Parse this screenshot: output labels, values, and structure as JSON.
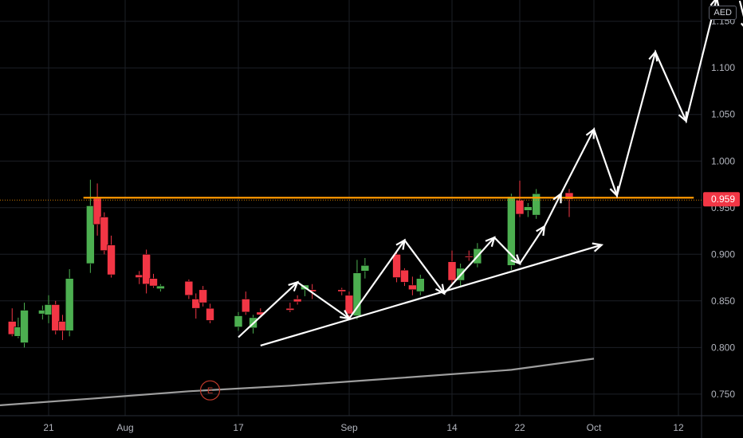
{
  "currency": "AED",
  "colors": {
    "background": "#000000",
    "grid": "#1c1f26",
    "up": "#4caf50",
    "down": "#f23645",
    "resistance": "#ff9800",
    "annotation": "#ffffff",
    "moving_average": "#9e9e9e",
    "price_tag": "#f23645",
    "earnings": "#c0392b"
  },
  "chart_data": {
    "type": "candlestick",
    "x_axis": {
      "ticks": [
        "21",
        "Aug",
        "17",
        "Sep",
        "14",
        "22",
        "Oct",
        "12"
      ]
    },
    "y_axis": {
      "range": [
        0.735,
        1.16
      ],
      "ticks": [
        "1.150",
        "1.100",
        "1.050",
        "1.000",
        "0.950",
        "0.900",
        "0.850",
        "0.800",
        "0.750"
      ]
    },
    "last_price": "0.959",
    "candles": [
      {
        "d": "Jul 15",
        "o": 0.828,
        "h": 0.842,
        "l": 0.812,
        "c": 0.814
      },
      {
        "d": "Jul 16",
        "o": 0.812,
        "h": 0.832,
        "l": 0.81,
        "c": 0.822
      },
      {
        "d": "Jul 17",
        "o": 0.805,
        "h": 0.848,
        "l": 0.8,
        "c": 0.84
      },
      {
        "d": "Jul 20",
        "o": 0.836,
        "h": 0.845,
        "l": 0.83,
        "c": 0.84
      },
      {
        "d": "Jul 21",
        "o": 0.835,
        "h": 0.856,
        "l": 0.826,
        "c": 0.846
      },
      {
        "d": "Jul 22",
        "o": 0.846,
        "h": 0.85,
        "l": 0.814,
        "c": 0.818
      },
      {
        "d": "Jul 23",
        "o": 0.828,
        "h": 0.835,
        "l": 0.808,
        "c": 0.818
      },
      {
        "d": "Jul 24",
        "o": 0.818,
        "h": 0.884,
        "l": 0.812,
        "c": 0.874
      },
      {
        "d": "Jul 27",
        "o": 0.89,
        "h": 0.98,
        "l": 0.88,
        "c": 0.952
      },
      {
        "d": "Jul 28",
        "o": 0.96,
        "h": 0.976,
        "l": 0.92,
        "c": 0.932
      },
      {
        "d": "Jul 29",
        "o": 0.94,
        "h": 0.945,
        "l": 0.9,
        "c": 0.904
      },
      {
        "d": "Jul 30",
        "o": 0.91,
        "h": 0.92,
        "l": 0.875,
        "c": 0.878
      },
      {
        "d": "Aug 3",
        "o": 0.878,
        "h": 0.882,
        "l": 0.868,
        "c": 0.875
      },
      {
        "d": "Aug 4",
        "o": 0.9,
        "h": 0.905,
        "l": 0.858,
        "c": 0.868
      },
      {
        "d": "Aug 5",
        "o": 0.874,
        "h": 0.879,
        "l": 0.864,
        "c": 0.866
      },
      {
        "d": "Aug 6",
        "o": 0.863,
        "h": 0.868,
        "l": 0.86,
        "c": 0.866
      },
      {
        "d": "Aug 10",
        "o": 0.871,
        "h": 0.873,
        "l": 0.852,
        "c": 0.856
      },
      {
        "d": "Aug 11",
        "o": 0.852,
        "h": 0.858,
        "l": 0.831,
        "c": 0.842
      },
      {
        "d": "Aug 12",
        "o": 0.862,
        "h": 0.866,
        "l": 0.844,
        "c": 0.848
      },
      {
        "d": "Aug 13",
        "o": 0.842,
        "h": 0.847,
        "l": 0.826,
        "c": 0.829
      },
      {
        "d": "Aug 17",
        "o": 0.822,
        "h": 0.838,
        "l": 0.818,
        "c": 0.834
      },
      {
        "d": "Aug 18",
        "o": 0.852,
        "h": 0.86,
        "l": 0.835,
        "c": 0.838
      },
      {
        "d": "Aug 19",
        "o": 0.821,
        "h": 0.835,
        "l": 0.815,
        "c": 0.832
      },
      {
        "d": "Aug 20",
        "o": 0.838,
        "h": 0.842,
        "l": 0.832,
        "c": 0.835
      },
      {
        "d": "Aug 24",
        "o": 0.842,
        "h": 0.848,
        "l": 0.838,
        "c": 0.84
      },
      {
        "d": "Aug 25",
        "o": 0.852,
        "h": 0.856,
        "l": 0.846,
        "c": 0.849
      },
      {
        "d": "Aug 26",
        "o": 0.862,
        "h": 0.866,
        "l": 0.855,
        "c": 0.867
      },
      {
        "d": "Aug 27",
        "o": 0.862,
        "h": 0.868,
        "l": 0.852,
        "c": 0.86
      },
      {
        "d": "Aug 31",
        "o": 0.862,
        "h": 0.864,
        "l": 0.856,
        "c": 0.86
      },
      {
        "d": "Sep 1",
        "o": 0.856,
        "h": 0.86,
        "l": 0.832,
        "c": 0.836
      },
      {
        "d": "Sep 2",
        "o": 0.834,
        "h": 0.894,
        "l": 0.83,
        "c": 0.88
      },
      {
        "d": "Sep 3",
        "o": 0.882,
        "h": 0.896,
        "l": 0.874,
        "c": 0.888
      },
      {
        "d": "Sep 7",
        "o": 0.9,
        "h": 0.904,
        "l": 0.87,
        "c": 0.875
      },
      {
        "d": "Sep 8",
        "o": 0.883,
        "h": 0.885,
        "l": 0.866,
        "c": 0.87
      },
      {
        "d": "Sep 9",
        "o": 0.867,
        "h": 0.876,
        "l": 0.856,
        "c": 0.862
      },
      {
        "d": "Sep 10",
        "o": 0.86,
        "h": 0.878,
        "l": 0.856,
        "c": 0.874
      },
      {
        "d": "Sep 14",
        "o": 0.892,
        "h": 0.904,
        "l": 0.868,
        "c": 0.872
      },
      {
        "d": "Sep 15",
        "o": 0.872,
        "h": 0.89,
        "l": 0.866,
        "c": 0.885
      },
      {
        "d": "Sep 16",
        "o": 0.898,
        "h": 0.904,
        "l": 0.893,
        "c": 0.897
      },
      {
        "d": "Sep 17",
        "o": 0.89,
        "h": 0.912,
        "l": 0.886,
        "c": 0.906
      },
      {
        "d": "Sep 21",
        "o": 0.888,
        "h": 0.965,
        "l": 0.883,
        "c": 0.962
      },
      {
        "d": "Sep 22",
        "o": 0.958,
        "h": 0.979,
        "l": 0.94,
        "c": 0.943
      },
      {
        "d": "Sep 23",
        "o": 0.947,
        "h": 0.955,
        "l": 0.94,
        "c": 0.951
      },
      {
        "d": "Sep 24",
        "o": 0.942,
        "h": 0.97,
        "l": 0.938,
        "c": 0.965
      },
      {
        "d": "Sep 28",
        "o": 0.966,
        "h": 0.97,
        "l": 0.94,
        "c": 0.959
      }
    ],
    "resistance_level": 0.959,
    "moving_average": [
      {
        "d": "Jul 13",
        "v": 0.738
      },
      {
        "d": "Jul 27",
        "v": 0.745
      },
      {
        "d": "Aug 10",
        "v": 0.753
      },
      {
        "d": "Aug 24",
        "v": 0.759
      },
      {
        "d": "Sep 7",
        "v": 0.767
      },
      {
        "d": "Sep 21",
        "v": 0.776
      },
      {
        "d": "Oct 1",
        "v": 0.788
      }
    ],
    "trendline": [
      {
        "d": "Aug 20",
        "v": 0.802
      },
      {
        "d": "Oct 2",
        "v": 0.91
      }
    ],
    "projection_path": [
      {
        "d": "Aug 17",
        "v": 0.811
      },
      {
        "d": "Aug 25",
        "v": 0.87
      },
      {
        "d": "Sep 1",
        "v": 0.831
      },
      {
        "d": "Sep 8",
        "v": 0.915
      },
      {
        "d": "Sep 13",
        "v": 0.858
      },
      {
        "d": "Sep 19",
        "v": 0.918
      },
      {
        "d": "Sep 22",
        "v": 0.89
      },
      {
        "d": "Sep 25",
        "v": 0.93
      },
      {
        "d": "Sep 27",
        "v": 0.965
      },
      {
        "d": "Oct 1",
        "v": 1.034
      },
      {
        "d": "Oct 4",
        "v": 0.963
      },
      {
        "d": "Oct 9",
        "v": 1.117
      },
      {
        "d": "Oct 13",
        "v": 1.043
      },
      {
        "d": "Oct 17",
        "v": 1.175
      }
    ],
    "projection_tail": [
      {
        "d": "Oct 20",
        "v": 1.172
      },
      {
        "d": "Oct 21",
        "v": 1.14
      },
      {
        "d": "Oct 23",
        "v": 1.172
      }
    ],
    "markers": [
      {
        "d": "Aug 13",
        "v": 0.754,
        "label": "E"
      }
    ]
  }
}
